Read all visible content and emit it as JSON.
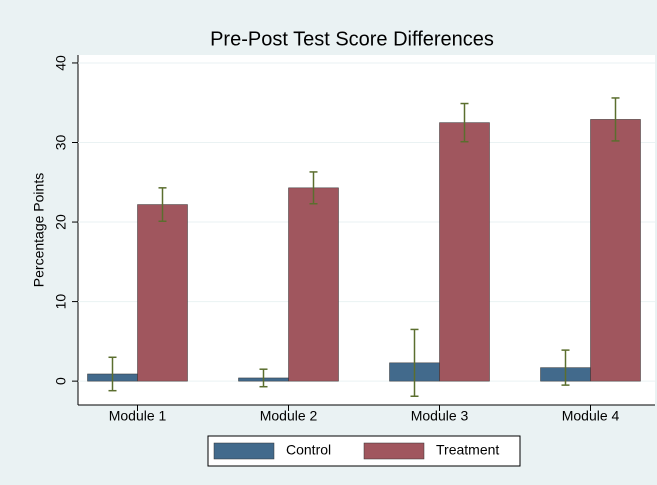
{
  "chart_data": {
    "type": "bar",
    "title": "Pre-Post Test Score Differences",
    "y_label": "Percentage Points",
    "categories": [
      "Module 1",
      "Module 2",
      "Module 3",
      "Module 4"
    ],
    "series": [
      {
        "name": "Control",
        "color": "#426a8c",
        "values": [
          0.9,
          0.4,
          2.3,
          1.7
        ],
        "errors": [
          2.1,
          1.1,
          4.2,
          2.2
        ]
      },
      {
        "name": "Treatment",
        "color": "#a0565e",
        "values": [
          22.2,
          24.3,
          32.5,
          32.9
        ],
        "errors": [
          2.1,
          2.0,
          2.4,
          2.7
        ]
      }
    ],
    "error_color": "#5b6e2e",
    "ylim": [
      -3,
      41
    ],
    "yticks": [
      0,
      10,
      20,
      30,
      40
    ],
    "grid": true
  }
}
